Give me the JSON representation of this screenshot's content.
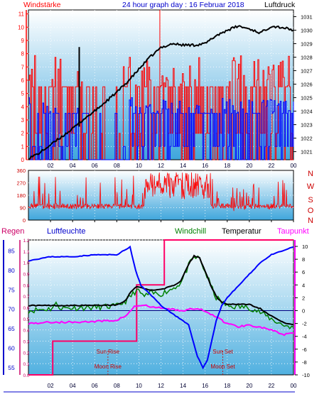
{
  "header": {
    "left_label": "Windstärke",
    "title": "24 hour graph day : 16 Februar 2018",
    "right_label": "Luftdruck"
  },
  "colors": {
    "bg_top": "#ffffff",
    "bg_bottom": "#3fa6dc",
    "wind": "#ff0000",
    "gust": "#0000ff",
    "pressure": "#000000",
    "humidity": "#0000ff",
    "temperature": "#000000",
    "windchill": "#008000",
    "dewpoint": "#ff00ff",
    "rain": "#ff0066",
    "sunmoon_text": "#cc0000"
  },
  "chart_data": [
    {
      "type": "line",
      "name": "wind_pressure",
      "x_ticks": [
        "02",
        "04",
        "06",
        "08",
        "10",
        "12",
        "14",
        "16",
        "18",
        "20",
        "22",
        "00"
      ],
      "y_left": {
        "label": "Windstärke",
        "ticks": [
          0,
          1,
          2,
          3,
          4,
          5,
          6,
          7,
          8,
          9,
          10,
          11
        ],
        "range": [
          0,
          11.3
        ]
      },
      "y_right": {
        "label": "Luftdruck",
        "ticks": [
          1021,
          1022,
          1023,
          1024,
          1025,
          1026,
          1027,
          1028,
          1029,
          1030,
          1031
        ],
        "range": [
          1020.4,
          1031.5
        ]
      },
      "pressure": [
        [
          0,
          1020.5
        ],
        [
          1,
          1020.9
        ],
        [
          2,
          1021.5
        ],
        [
          3,
          1022.1
        ],
        [
          4,
          1022.7
        ],
        [
          5,
          1023.4
        ],
        [
          6,
          1024.0
        ],
        [
          7,
          1024.7
        ],
        [
          8,
          1025.4
        ],
        [
          9,
          1026.2
        ],
        [
          10,
          1027.1
        ],
        [
          11,
          1028.0
        ],
        [
          12,
          1028.7
        ],
        [
          13,
          1029.0
        ],
        [
          14,
          1028.9
        ],
        [
          15,
          1028.9
        ],
        [
          16,
          1029.0
        ],
        [
          17,
          1029.6
        ],
        [
          18,
          1030.0
        ],
        [
          19,
          1030.3
        ],
        [
          20,
          1030.1
        ],
        [
          21,
          1029.8
        ],
        [
          22,
          1030.3
        ],
        [
          23,
          1030.2
        ],
        [
          24,
          1030.0
        ]
      ],
      "wind_level_base": 3.5,
      "gust_level_base": 5.5,
      "wind_spike": {
        "x": 4.6,
        "from": 2.5,
        "to": 8.5
      },
      "gust_spike": {
        "x": 11.9,
        "to": 11.3
      }
    },
    {
      "type": "scatter",
      "name": "wind_direction",
      "y_left": {
        "ticks": [
          0,
          90,
          180,
          270,
          360
        ]
      },
      "y_right_labels": [
        "N",
        "W",
        "S",
        "O",
        "N"
      ],
      "x_ticks": [
        "02",
        "04",
        "06",
        "08",
        "10",
        "12",
        "14",
        "16",
        "18",
        "20",
        "22",
        "00"
      ]
    },
    {
      "type": "line",
      "name": "temp_humidity",
      "legend": [
        "Regen",
        "Luftfeuchte",
        "Windchill",
        "Temperatur",
        "Taupunkt"
      ],
      "rain_ticks": [
        0,
        0.1,
        0.2,
        0.3,
        0.4,
        0.5,
        0.6,
        0.7,
        0.8,
        0.9,
        1.0,
        1.1,
        1.2
      ],
      "humidity_ticks": [
        55,
        60,
        65,
        70,
        75,
        80,
        85
      ],
      "temp_ticks": [
        -10,
        -8,
        -6,
        -4,
        -2,
        0,
        2,
        4,
        6,
        8,
        10
      ],
      "x_ticks": [
        "02",
        "04",
        "06",
        "08",
        "10",
        "12",
        "14",
        "16",
        "18",
        "20",
        "22",
        "00"
      ],
      "humidity": [
        [
          0,
          82.5
        ],
        [
          2,
          83.5
        ],
        [
          4,
          83.5
        ],
        [
          6,
          84
        ],
        [
          8,
          84
        ],
        [
          9.2,
          86
        ],
        [
          9.7,
          80
        ],
        [
          10.2,
          76
        ],
        [
          11,
          74
        ],
        [
          12,
          71
        ],
        [
          13,
          69
        ],
        [
          14.5,
          66
        ],
        [
          15.3,
          58
        ],
        [
          15.8,
          55
        ],
        [
          16.2,
          57
        ],
        [
          16.6,
          62
        ],
        [
          17,
          67
        ],
        [
          17.5,
          71
        ],
        [
          18,
          73
        ],
        [
          19,
          76
        ],
        [
          20,
          79
        ],
        [
          21,
          82
        ],
        [
          22,
          84
        ],
        [
          23,
          85
        ],
        [
          24,
          86
        ]
      ],
      "temperature": [
        [
          0,
          0.8
        ],
        [
          3,
          0.8
        ],
        [
          6,
          0.8
        ],
        [
          8,
          0.9
        ],
        [
          8.8,
          1.6
        ],
        [
          9.3,
          3
        ],
        [
          9.8,
          3.8
        ],
        [
          10.5,
          3.4
        ],
        [
          11,
          3.2
        ],
        [
          12,
          3.3
        ],
        [
          13,
          3.8
        ],
        [
          13.8,
          4.6
        ],
        [
          14.5,
          7.2
        ],
        [
          15,
          8.5
        ],
        [
          15.5,
          8.2
        ],
        [
          16,
          6.2
        ],
        [
          16.5,
          4
        ],
        [
          17,
          2.2
        ],
        [
          17.5,
          1.3
        ],
        [
          18,
          1
        ],
        [
          19,
          1
        ],
        [
          20,
          1
        ],
        [
          21,
          0.3
        ],
        [
          22,
          -0.8
        ],
        [
          23,
          -1.8
        ],
        [
          24,
          -2.2
        ]
      ],
      "windchill": [
        [
          0,
          0
        ],
        [
          2,
          0.3
        ],
        [
          2.5,
          1
        ],
        [
          3,
          0.4
        ],
        [
          6,
          0.5
        ],
        [
          8,
          0.7
        ],
        [
          8.8,
          1.5
        ],
        [
          9.3,
          2.3
        ],
        [
          9.8,
          3.2
        ],
        [
          10.5,
          2.2
        ],
        [
          11,
          2.7
        ],
        [
          12,
          2.6
        ],
        [
          13,
          3.4
        ],
        [
          13.8,
          4.3
        ],
        [
          14.5,
          7
        ],
        [
          15,
          8.3
        ],
        [
          15.5,
          8.1
        ],
        [
          16,
          6.0
        ],
        [
          17,
          2.0
        ],
        [
          18,
          0.7
        ],
        [
          19,
          0.6
        ],
        [
          20,
          0.5
        ],
        [
          21,
          -0.3
        ],
        [
          22,
          -1.3
        ],
        [
          23,
          -2.2
        ],
        [
          24,
          -2.6
        ]
      ],
      "dewpoint": [
        [
          0,
          -2
        ],
        [
          2,
          -1.8
        ],
        [
          4,
          -1.8
        ],
        [
          6,
          -1.7
        ],
        [
          8,
          -1.5
        ],
        [
          9,
          -0.6
        ],
        [
          9.6,
          0.7
        ],
        [
          10.5,
          0.8
        ],
        [
          11,
          0.6
        ],
        [
          12,
          0.4
        ],
        [
          13,
          0.2
        ],
        [
          14,
          0
        ],
        [
          15,
          0.3
        ],
        [
          16,
          0
        ],
        [
          17,
          -1
        ],
        [
          18,
          -2
        ],
        [
          19,
          -2.5
        ],
        [
          20,
          -2.2
        ],
        [
          21,
          -2.6
        ],
        [
          22,
          -3
        ],
        [
          23,
          -3.8
        ],
        [
          24,
          -3.5
        ]
      ],
      "rain": [
        [
          0,
          0
        ],
        [
          2.2,
          0
        ],
        [
          2.2,
          0.3
        ],
        [
          9.8,
          0.3
        ],
        [
          9.8,
          0.8
        ],
        [
          12.3,
          0.8
        ],
        [
          12.3,
          1.2
        ],
        [
          24,
          1.2
        ]
      ],
      "annotations": [
        {
          "text": "Sun Rise",
          "x": 7.2,
          "line": 5
        },
        {
          "text": "Moon Rise",
          "x": 7.2,
          "line": 7
        },
        {
          "text": "Sun Set",
          "x": 17.6,
          "line": 5
        },
        {
          "text": "Moon Set",
          "x": 17.6,
          "line": 7
        }
      ]
    }
  ]
}
